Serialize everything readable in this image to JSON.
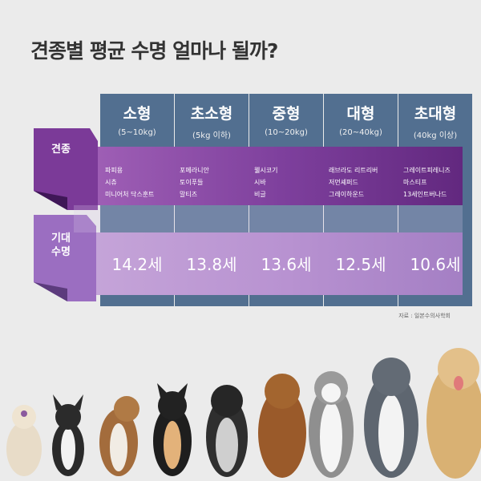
{
  "title": "견종별 평균 수명 얼마나 될까?",
  "row_labels": {
    "breed": "견종",
    "lifespan": "기대 수명"
  },
  "source": "자료 : 일본수의사학회",
  "chart_data": {
    "type": "table",
    "categories": [
      {
        "name": "소형",
        "range": "(5~10kg)",
        "breeds": [
          "파피용",
          "시츄",
          "미니어처 닥스훈트"
        ],
        "lifespan": 14.2,
        "lifespan_label": "14.2세"
      },
      {
        "name": "초소형",
        "range": "(5kg 이하)",
        "breeds": [
          "포메라니안",
          "토이푸들",
          "말티즈"
        ],
        "lifespan": 13.8,
        "lifespan_label": "13.8세"
      },
      {
        "name": "중형",
        "range": "(10~20kg)",
        "breeds": [
          "웰시코기",
          "시바",
          "비글"
        ],
        "lifespan": 13.6,
        "lifespan_label": "13.6세"
      },
      {
        "name": "대형",
        "range": "(20~40kg)",
        "breeds": [
          "래브라도 리트리버",
          "저먼셰퍼드",
          "그레이하운드"
        ],
        "lifespan": 12.5,
        "lifespan_label": "12.5세"
      },
      {
        "name": "초대형",
        "range": "(40kg 이상)",
        "breeds": [
          "그레이트피레니즈",
          "마스티프",
          "13세인트버나드"
        ],
        "lifespan": 10.6,
        "lifespan_label": "10.6세"
      }
    ]
  },
  "colors": {
    "column": "#526f90",
    "breed_band": "#7d3f9c",
    "lifespan_band": "#b892d1"
  }
}
